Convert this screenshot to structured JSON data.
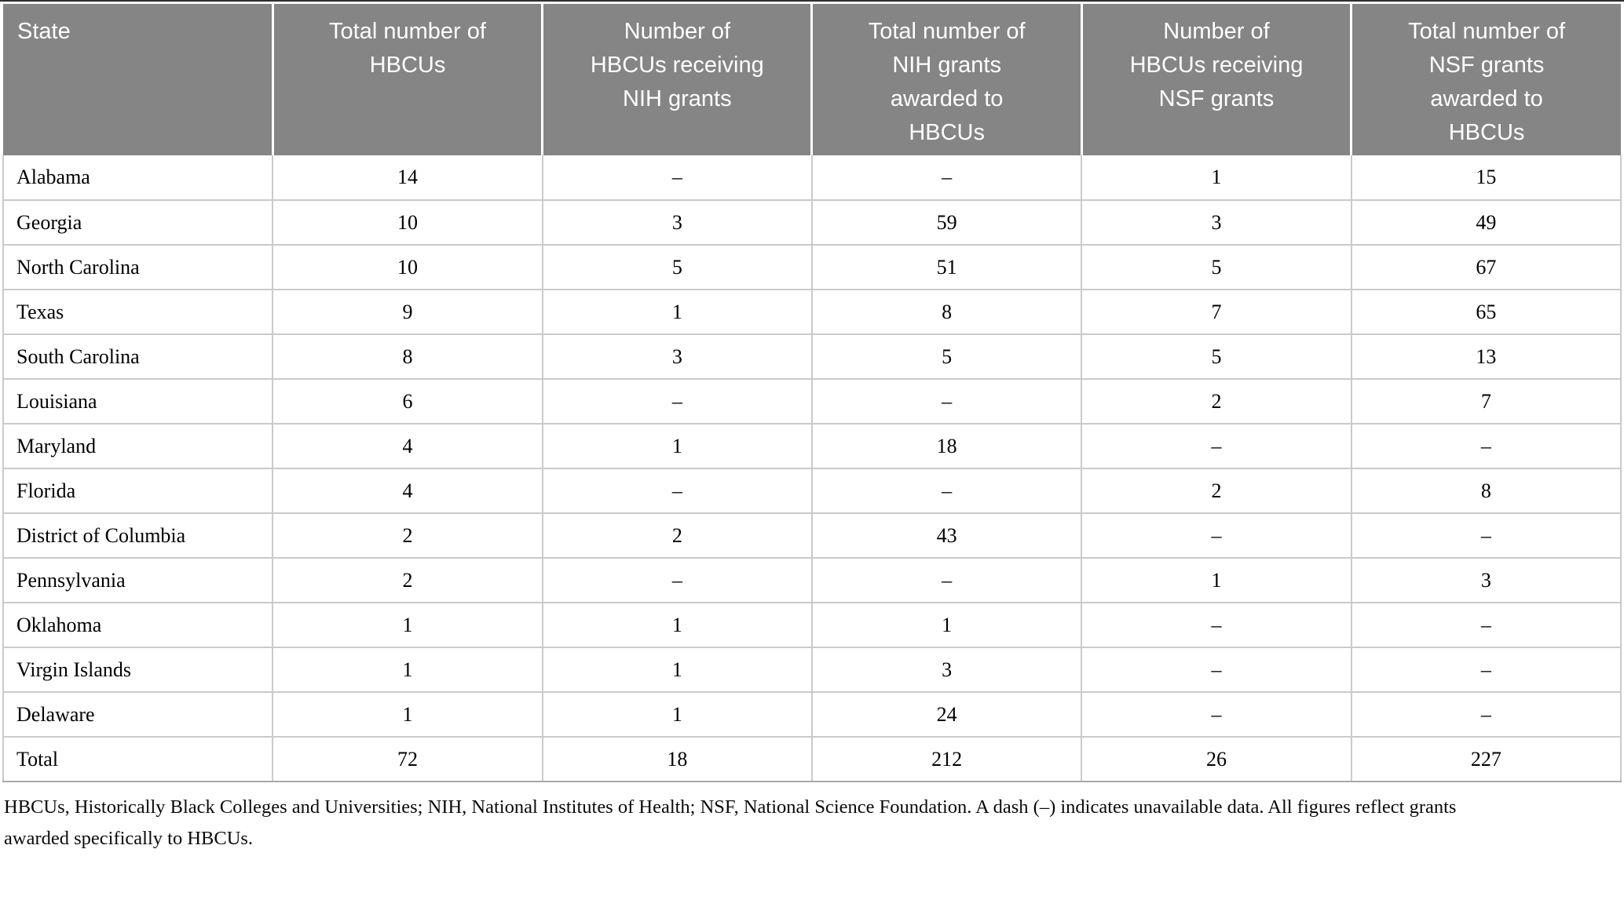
{
  "colors": {
    "header_bg": "#858585",
    "header_text": "#ffffff",
    "row_border": "#cacaca",
    "bottom_border": "#a8a8a8"
  },
  "table": {
    "columns": [
      {
        "label": "State"
      },
      {
        "label": "Total number of\nHBCUs"
      },
      {
        "label": "Number of\nHBCUs receiving\nNIH grants"
      },
      {
        "label": "Total number of\nNIH grants\nawarded to\nHBCUs"
      },
      {
        "label": "Number of\nHBCUs receiving\nNSF grants"
      },
      {
        "label": "Total number of\nNSF grants\nawarded to\nHBCUs"
      }
    ],
    "rows": [
      {
        "state": "Alabama",
        "values": [
          "14",
          "–",
          "–",
          "1",
          "15"
        ]
      },
      {
        "state": "Georgia",
        "values": [
          "10",
          "3",
          "59",
          "3",
          "49"
        ]
      },
      {
        "state": "North Carolina",
        "values": [
          "10",
          "5",
          "51",
          "5",
          "67"
        ]
      },
      {
        "state": "Texas",
        "values": [
          "9",
          "1",
          "8",
          "7",
          "65"
        ]
      },
      {
        "state": "South Carolina",
        "values": [
          "8",
          "3",
          "5",
          "5",
          "13"
        ]
      },
      {
        "state": "Louisiana",
        "values": [
          "6",
          "–",
          "–",
          "2",
          "7"
        ]
      },
      {
        "state": "Maryland",
        "values": [
          "4",
          "1",
          "18",
          "–",
          "–"
        ]
      },
      {
        "state": "Florida",
        "values": [
          "4",
          "–",
          "–",
          "2",
          "8"
        ]
      },
      {
        "state": "District of Columbia",
        "values": [
          "2",
          "2",
          "43",
          "–",
          "–"
        ]
      },
      {
        "state": "Pennsylvania",
        "values": [
          "2",
          "–",
          "–",
          "1",
          "3"
        ]
      },
      {
        "state": "Oklahoma",
        "values": [
          "1",
          "1",
          "1",
          "–",
          "–"
        ]
      },
      {
        "state": "Virgin Islands",
        "values": [
          "1",
          "1",
          "3",
          "–",
          "–"
        ]
      },
      {
        "state": "Delaware",
        "values": [
          "1",
          "1",
          "24",
          "–",
          "–"
        ]
      },
      {
        "state": "Total",
        "values": [
          "72",
          "18",
          "212",
          "26",
          "227"
        ]
      }
    ]
  },
  "footnote": "HBCUs, Historically Black Colleges and Universities; NIH, National Institutes of Health; NSF, National Science Foundation. A dash (–) indicates unavailable data. All figures reflect grants\nawarded specifically to HBCUs."
}
